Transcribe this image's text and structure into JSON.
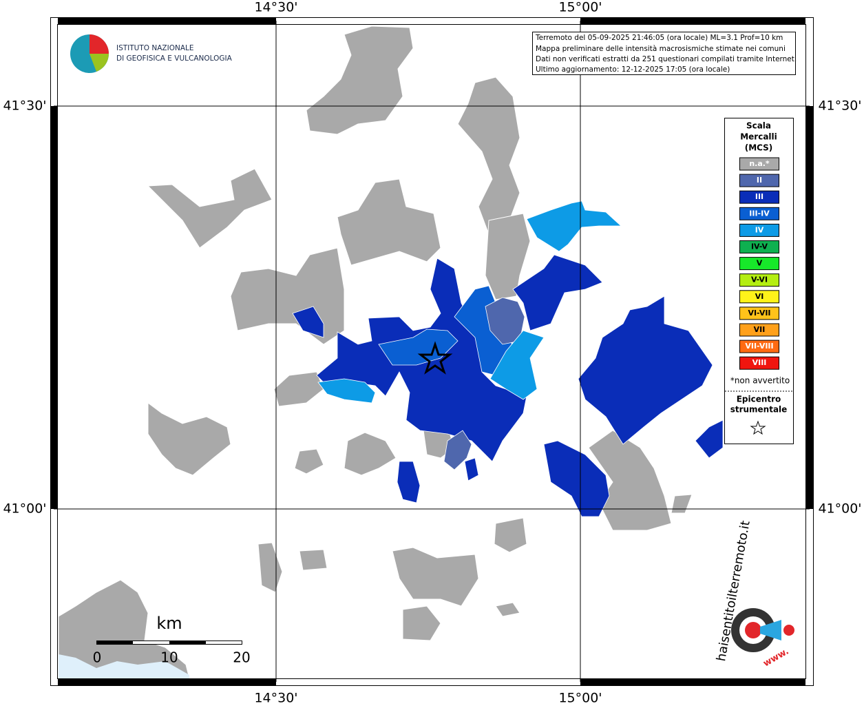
{
  "grid": {
    "lon_labels": [
      "14°30'",
      "15°00'"
    ],
    "lat_labels": [
      "41°30'",
      "41°00'"
    ]
  },
  "info": {
    "lines": [
      "Terremoto del 05-09-2025 21:46:05 (ora locale) ML=3.1 Prof=10 km",
      "Mappa preliminare delle intensità macrosismiche stimate nei comuni",
      "Dati non verificati estratti da 251 questionari compilati tramite Internet.",
      "Ultimo aggiornamento: 12-12-2025 17:05 (ora locale)"
    ]
  },
  "logo": {
    "lines": [
      "ISTITUTO NAZIONALE",
      "DI GEOFISICA E VULCANOLOGIA"
    ]
  },
  "legend": {
    "title": [
      "Scala",
      "Mercalli",
      "(MCS)"
    ],
    "items": [
      {
        "label": "n.a.*",
        "color": "#a9a9a9"
      },
      {
        "label": "II",
        "color": "#4f67ad"
      },
      {
        "label": "III",
        "color": "#0a2db8"
      },
      {
        "label": "III-IV",
        "color": "#0a5fd2"
      },
      {
        "label": "IV",
        "color": "#0d9be6"
      },
      {
        "label": "IV-V",
        "color": "#0fb050"
      },
      {
        "label": "V",
        "color": "#17e82a"
      },
      {
        "label": "V-VI",
        "color": "#b4ee12"
      },
      {
        "label": "VI",
        "color": "#fff21a"
      },
      {
        "label": "VI-VII",
        "color": "#ffc31a"
      },
      {
        "label": "VII",
        "color": "#ffa01a"
      },
      {
        "label": "VII-VIII",
        "color": "#ff6a12"
      },
      {
        "label": "VIII",
        "color": "#f0150f"
      }
    ],
    "note": "*non avvertito",
    "epicenter": [
      "Epicentro",
      "strumentale"
    ]
  },
  "scale_bar": {
    "unit": "km",
    "labels": [
      0,
      10,
      20
    ]
  },
  "site": {
    "name": "haisentitoilterremoto.it",
    "prefix": "www."
  }
}
